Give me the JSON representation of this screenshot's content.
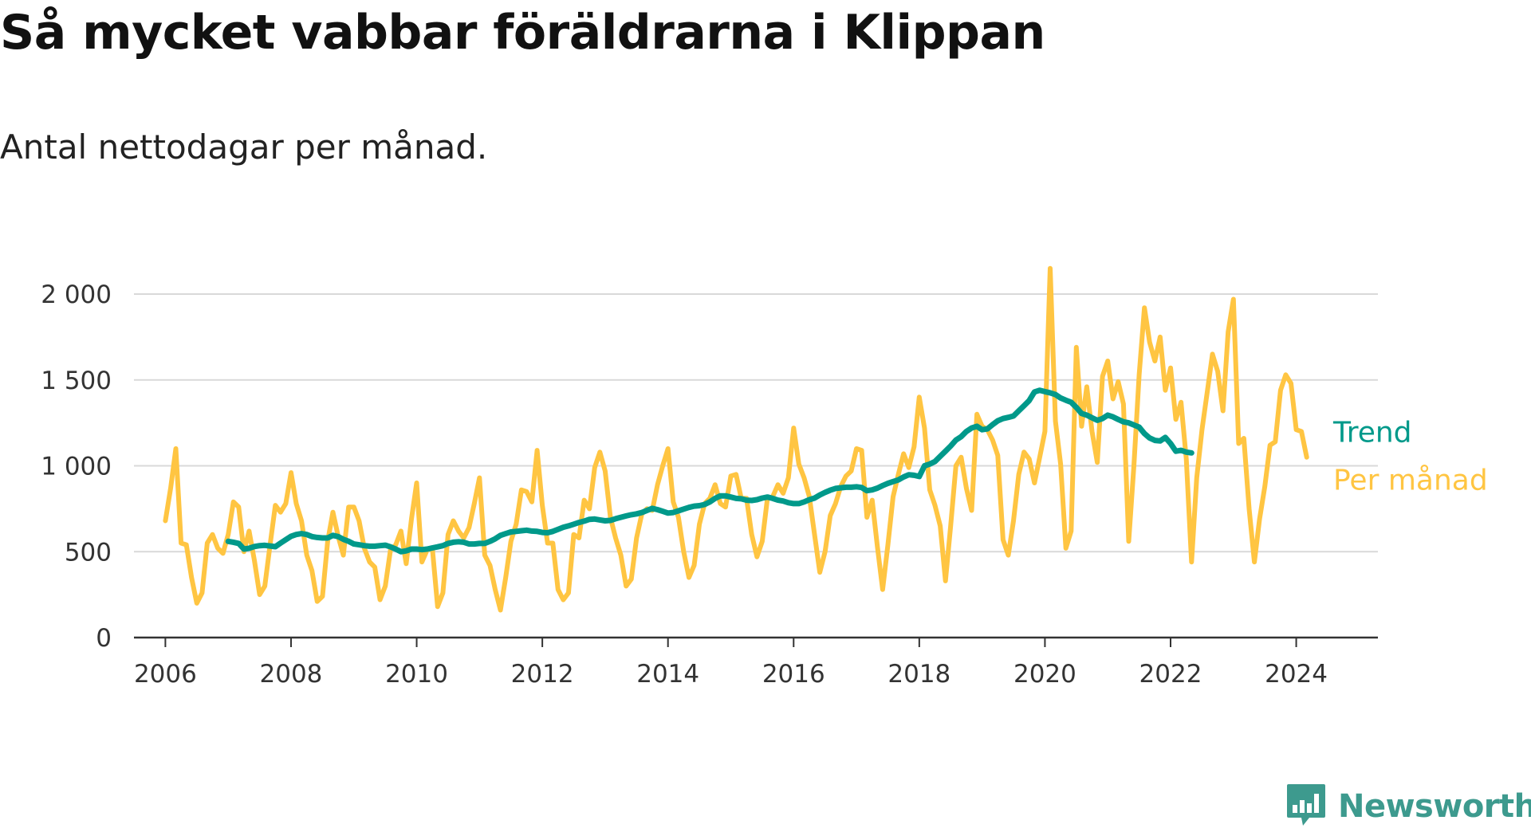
{
  "title": "Så mycket vabbar föräldrarna i Klippan",
  "subtitle": "Antal nettodagar per månad.",
  "brand": {
    "name": "Newsworthy",
    "icon": "newsworthy-bar-chart-icon",
    "color": "#3d9a8e"
  },
  "colors": {
    "monthly": "#ffc542",
    "trend": "#00998a",
    "grid": "#d9d9d9",
    "axis": "#333333"
  },
  "chart_data": {
    "type": "line",
    "title": "Så mycket vabbar föräldrarna i Klippan",
    "subtitle": "Antal nettodagar per månad.",
    "xlabel": "",
    "ylabel": "",
    "xlim": [
      2005.5,
      2025.3
    ],
    "ylim": [
      0,
      2000
    ],
    "x_ticks": [
      2006,
      2008,
      2010,
      2012,
      2014,
      2016,
      2018,
      2020,
      2022,
      2024
    ],
    "x_tick_labels": [
      "2006",
      "2008",
      "2010",
      "2012",
      "2014",
      "2016",
      "2018",
      "2020",
      "2022",
      "2024"
    ],
    "y_ticks": [
      0,
      500,
      1000,
      1500,
      2000
    ],
    "y_tick_labels": [
      "0",
      "500",
      "1 000",
      "1 500",
      "2 000"
    ],
    "grid": true,
    "legend_placement": "right, at line ends",
    "start_month": "2006-01",
    "series": [
      {
        "name": "Per månad",
        "color": "#ffc542",
        "values": [
          680,
          870,
          1100,
          550,
          540,
          350,
          200,
          260,
          550,
          600,
          520,
          490,
          600,
          790,
          760,
          500,
          620,
          450,
          250,
          300,
          540,
          770,
          730,
          780,
          960,
          780,
          680,
          480,
          390,
          210,
          240,
          560,
          730,
          590,
          480,
          760,
          760,
          680,
          520,
          440,
          410,
          220,
          300,
          510,
          540,
          620,
          430,
          690,
          900,
          440,
          510,
          520,
          180,
          260,
          600,
          680,
          620,
          580,
          640,
          780,
          930,
          480,
          420,
          280,
          160,
          350,
          560,
          660,
          860,
          850,
          790,
          1090,
          770,
          550,
          550,
          280,
          220,
          260,
          600,
          580,
          800,
          750,
          990,
          1080,
          970,
          700,
          580,
          480,
          300,
          340,
          580,
          720,
          750,
          740,
          890,
          1000,
          1100,
          790,
          700,
          500,
          350,
          420,
          660,
          780,
          810,
          890,
          780,
          760,
          940,
          950,
          810,
          810,
          600,
          470,
          560,
          810,
          820,
          890,
          840,
          930,
          1220,
          1010,
          930,
          820,
          600,
          380,
          500,
          710,
          780,
          880,
          940,
          970,
          1100,
          1090,
          700,
          800,
          530,
          280,
          540,
          820,
          950,
          1070,
          990,
          1110,
          1400,
          1220,
          860,
          770,
          650,
          330,
          650,
          1000,
          1050,
          870,
          740,
          1300,
          1230,
          1210,
          1150,
          1060,
          570,
          480,
          680,
          950,
          1080,
          1040,
          900,
          1050,
          1200,
          2150,
          1260,
          1010,
          520,
          620,
          1690,
          1230,
          1460,
          1200,
          1020,
          1520,
          1610,
          1390,
          1490,
          1360,
          560,
          1000,
          1530,
          1920,
          1720,
          1610,
          1750,
          1440,
          1570,
          1270,
          1370,
          1040,
          440,
          930,
          1210,
          1430,
          1650,
          1550,
          1320,
          1780,
          1970,
          1130,
          1160,
          750,
          440,
          690,
          880,
          1120,
          1140,
          1440,
          1530,
          1480,
          1210,
          1200,
          1050
        ]
      },
      {
        "name": "Trend",
        "color": "#00998a",
        "start_month": "2007-01",
        "values": [
          560,
          555,
          548,
          515,
          520,
          530,
          535,
          537,
          533,
          529,
          550,
          570,
          590,
          600,
          605,
          600,
          588,
          583,
          580,
          580,
          595,
          588,
          572,
          560,
          545,
          540,
          535,
          532,
          532,
          535,
          538,
          528,
          515,
          500,
          505,
          515,
          515,
          512,
          515,
          522,
          528,
          535,
          548,
          555,
          558,
          555,
          545,
          545,
          548,
          548,
          560,
          575,
          595,
          605,
          615,
          618,
          622,
          625,
          620,
          618,
          612,
          610,
          618,
          630,
          642,
          650,
          660,
          670,
          678,
          688,
          690,
          685,
          680,
          682,
          692,
          700,
          708,
          715,
          720,
          728,
          740,
          752,
          745,
          735,
          725,
          728,
          738,
          748,
          758,
          765,
          768,
          775,
          790,
          810,
          825,
          825,
          818,
          810,
          808,
          800,
          798,
          803,
          812,
          818,
          810,
          800,
          795,
          785,
          780,
          780,
          790,
          803,
          812,
          830,
          845,
          858,
          868,
          872,
          875,
          875,
          878,
          874,
          855,
          860,
          870,
          885,
          898,
          908,
          918,
          935,
          948,
          945,
          938,
          1000,
          1010,
          1025,
          1055,
          1085,
          1115,
          1150,
          1170,
          1200,
          1220,
          1230,
          1210,
          1215,
          1240,
          1262,
          1275,
          1282,
          1290,
          1320,
          1350,
          1380,
          1430,
          1440,
          1432,
          1425,
          1415,
          1395,
          1382,
          1370,
          1340,
          1305,
          1295,
          1280,
          1265,
          1275,
          1295,
          1285,
          1270,
          1256,
          1250,
          1238,
          1225,
          1188,
          1162,
          1148,
          1145,
          1165,
          1130,
          1085,
          1090,
          1080,
          1075
        ]
      }
    ],
    "legend": [
      "Trend",
      "Per månad"
    ]
  }
}
